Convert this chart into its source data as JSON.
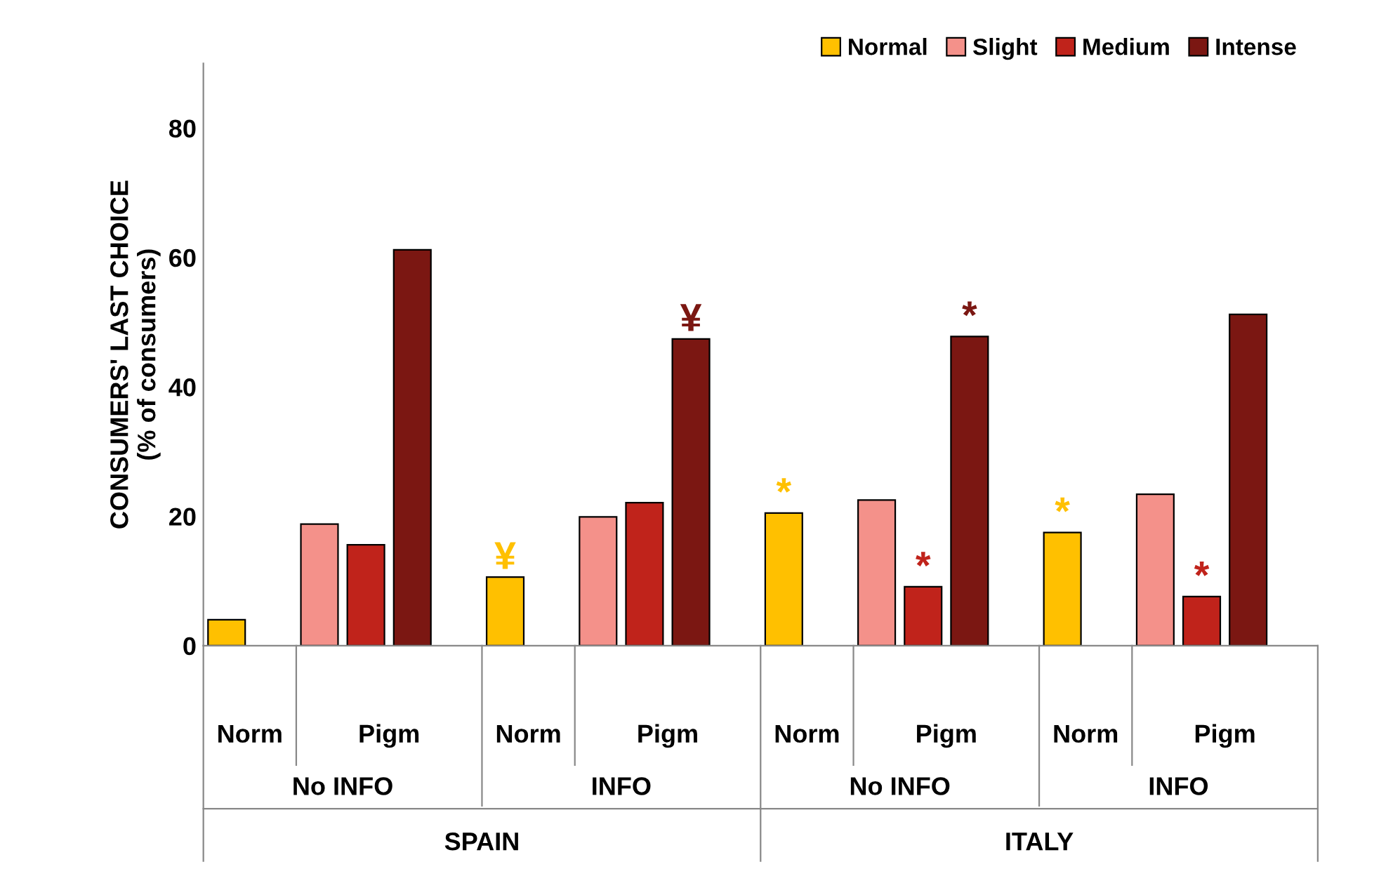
{
  "chart_data": {
    "type": "bar",
    "ylabel": "CONSUMERS' LAST CHOICE\n(% of consumers)",
    "categories": [
      "Norm",
      "Pigm",
      "Norm",
      "Pigm",
      "Norm",
      "Pigm",
      "Norm",
      "Pigm"
    ],
    "series": [
      {
        "name": "Normal",
        "color": "#ffc000",
        "values": [
          4,
          null,
          10.6,
          null,
          20.5,
          null,
          17.5,
          null
        ],
        "value_labels": [
          null,
          null,
          "¥",
          null,
          "*",
          null,
          "*",
          null
        ]
      },
      {
        "name": "Slight",
        "color": "#f4918a",
        "values": [
          null,
          18.8,
          null,
          19.9,
          null,
          22.5,
          null,
          23.4
        ],
        "value_labels": [
          null,
          null,
          null,
          null,
          null,
          null,
          null,
          null
        ]
      },
      {
        "name": "Medium",
        "color": "#c0231b",
        "values": [
          null,
          15.6,
          null,
          22.1,
          null,
          9.1,
          null,
          7.6
        ],
        "value_labels": [
          null,
          null,
          null,
          null,
          null,
          "*",
          null,
          "*"
        ]
      },
      {
        "name": "Intense",
        "color": "#7b1712",
        "values": [
          null,
          61.2,
          null,
          47.4,
          null,
          47.8,
          null,
          51.2
        ],
        "value_labels": [
          null,
          null,
          null,
          "¥",
          null,
          "*",
          null,
          null
        ]
      }
    ],
    "annotations": [
      "No INFO",
      "INFO",
      "No INFO",
      "INFO",
      "SPAIN",
      "ITALY"
    ],
    "ylim": [
      0,
      90
    ],
    "yticks": [
      0,
      20,
      40,
      60,
      80
    ],
    "grid": false,
    "legend": "top right"
  }
}
